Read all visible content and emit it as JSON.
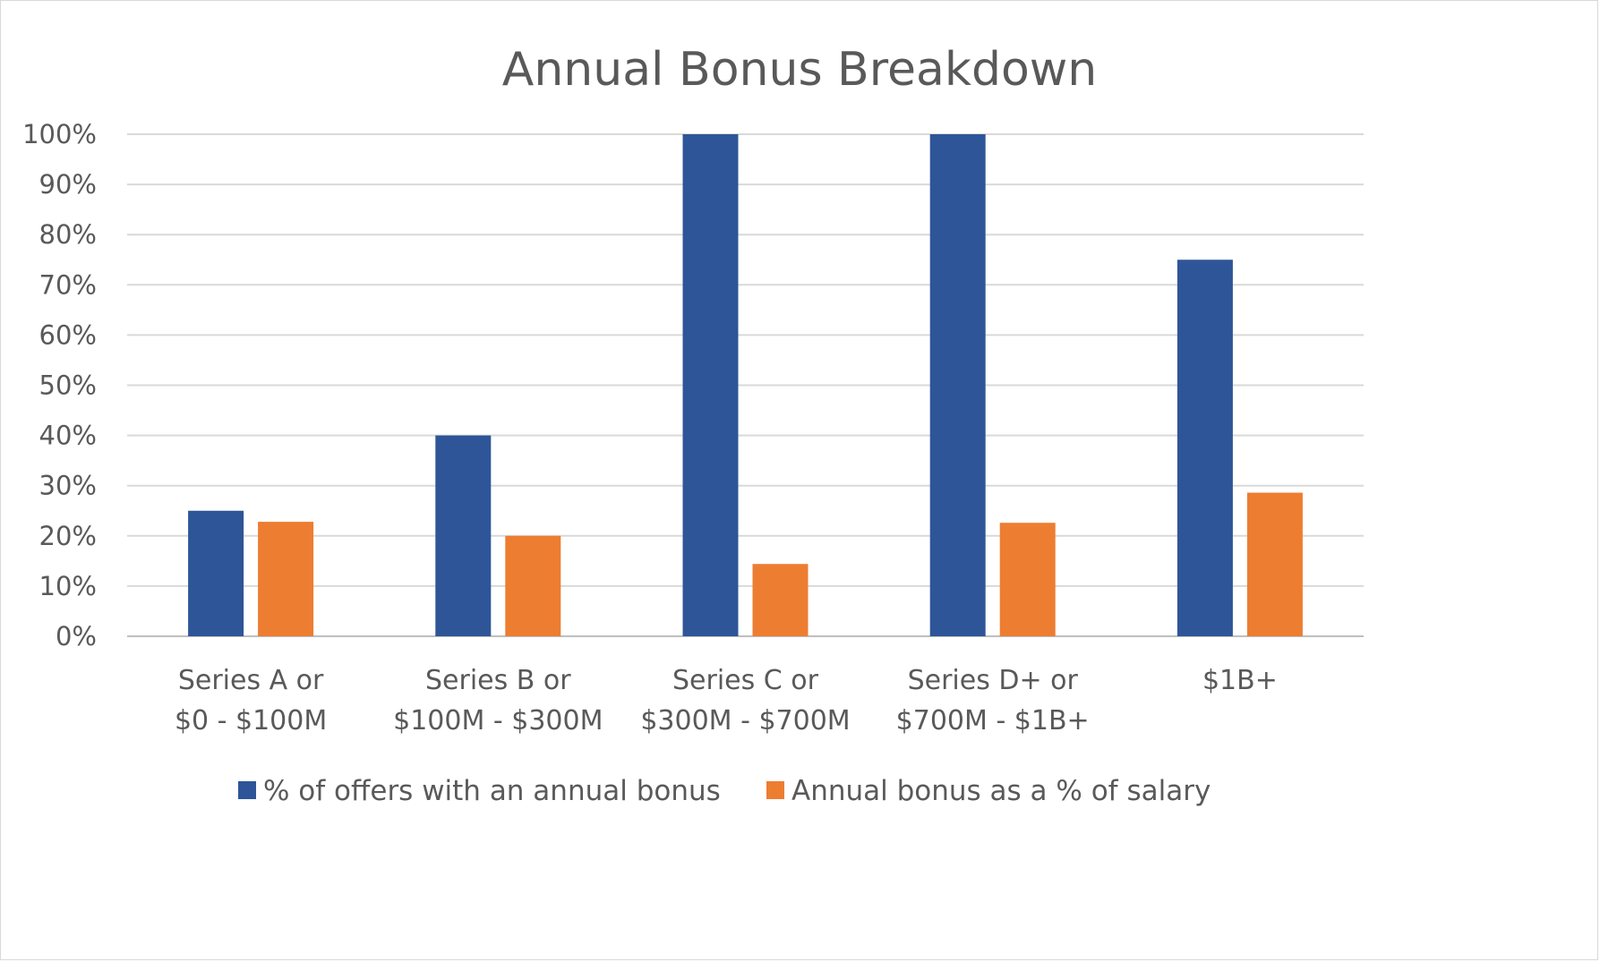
{
  "chart_data": {
    "type": "bar",
    "title": "Annual Bonus Breakdown",
    "categories": [
      [
        "Series A or",
        "$0 - $100M"
      ],
      [
        "Series B or",
        "$100M - $300M"
      ],
      [
        "Series C or",
        "$300M - $700M"
      ],
      [
        "Series D+ or",
        "$700M - $1B+"
      ],
      [
        "$1B+"
      ]
    ],
    "series": [
      {
        "name": "% of offers with an annual bonus",
        "color": "#2e5597",
        "values": [
          25,
          40,
          100,
          100,
          75
        ]
      },
      {
        "name": "Annual bonus as a % of salary",
        "color": "#ed7d31",
        "values": [
          22.8,
          20,
          14.4,
          22.6,
          28.6
        ]
      }
    ],
    "yticks": [
      "0%",
      "10%",
      "20%",
      "30%",
      "40%",
      "50%",
      "60%",
      "70%",
      "80%",
      "90%",
      "100%"
    ],
    "ylim": [
      0,
      100
    ],
    "grid": true,
    "legend_position": "bottom"
  }
}
